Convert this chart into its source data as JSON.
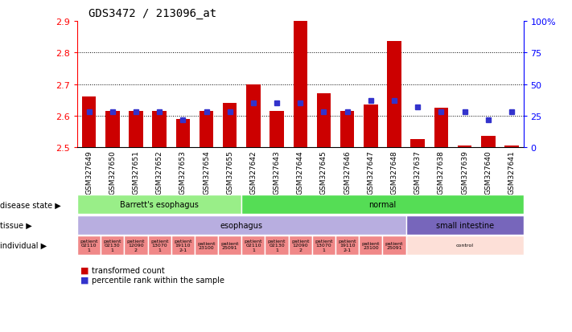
{
  "title": "GDS3472 / 213096_at",
  "samples": [
    "GSM327649",
    "GSM327650",
    "GSM327651",
    "GSM327652",
    "GSM327653",
    "GSM327654",
    "GSM327655",
    "GSM327642",
    "GSM327643",
    "GSM327644",
    "GSM327645",
    "GSM327646",
    "GSM327647",
    "GSM327648",
    "GSM327637",
    "GSM327638",
    "GSM327639",
    "GSM327640",
    "GSM327641"
  ],
  "red_values": [
    2.66,
    2.615,
    2.615,
    2.615,
    2.59,
    2.615,
    2.64,
    2.7,
    2.615,
    2.9,
    2.67,
    2.615,
    2.635,
    2.835,
    2.525,
    2.625,
    2.505,
    2.535,
    2.505
  ],
  "blue_values_pct": [
    28,
    28,
    28,
    28,
    22,
    28,
    28,
    35,
    35,
    35,
    28,
    28,
    37,
    37,
    32,
    28,
    28,
    22,
    28
  ],
  "ylim": [
    2.5,
    2.9
  ],
  "y_ticks": [
    2.5,
    2.6,
    2.7,
    2.8,
    2.9
  ],
  "right_ticks": [
    0,
    25,
    50,
    75,
    100
  ],
  "right_tick_labels": [
    "0",
    "25",
    "50",
    "75",
    "100%"
  ],
  "dotted_lines": [
    2.6,
    2.7,
    2.8
  ],
  "bar_color": "#cc0000",
  "blue_color": "#3333cc",
  "disease_state_groups": [
    {
      "label": "Barrett's esophagus",
      "start": 0,
      "end": 7,
      "color": "#99ee88"
    },
    {
      "label": "normal",
      "start": 7,
      "end": 19,
      "color": "#55dd55"
    }
  ],
  "tissue_groups": [
    {
      "label": "esophagus",
      "start": 0,
      "end": 14,
      "color": "#b8aee0"
    },
    {
      "label": "small intestine",
      "start": 14,
      "end": 19,
      "color": "#7766bb"
    }
  ],
  "individual_groups": [
    {
      "label": "patient\n02110\n1",
      "start": 0,
      "end": 1,
      "color": "#f08888"
    },
    {
      "label": "patient\n02130\n1",
      "start": 1,
      "end": 2,
      "color": "#f08888"
    },
    {
      "label": "patient\n12090\n2",
      "start": 2,
      "end": 3,
      "color": "#f08888"
    },
    {
      "label": "patient\n13070\n1",
      "start": 3,
      "end": 4,
      "color": "#f08888"
    },
    {
      "label": "patient\n19110\n2-1",
      "start": 4,
      "end": 5,
      "color": "#f08888"
    },
    {
      "label": "patient\n23100",
      "start": 5,
      "end": 6,
      "color": "#f08888"
    },
    {
      "label": "patient\n25091",
      "start": 6,
      "end": 7,
      "color": "#f08888"
    },
    {
      "label": "patient\n02110\n1",
      "start": 7,
      "end": 8,
      "color": "#f08888"
    },
    {
      "label": "patient\n02130\n1",
      "start": 8,
      "end": 9,
      "color": "#f08888"
    },
    {
      "label": "patient\n12090\n2",
      "start": 9,
      "end": 10,
      "color": "#f08888"
    },
    {
      "label": "patient\n13070\n1",
      "start": 10,
      "end": 11,
      "color": "#f08888"
    },
    {
      "label": "patient\n19110\n2-1",
      "start": 11,
      "end": 12,
      "color": "#f08888"
    },
    {
      "label": "patient\n23100",
      "start": 12,
      "end": 13,
      "color": "#f08888"
    },
    {
      "label": "patient\n25091",
      "start": 13,
      "end": 14,
      "color": "#f08888"
    },
    {
      "label": "control",
      "start": 14,
      "end": 19,
      "color": "#fde0d8"
    }
  ],
  "legend_items": [
    {
      "color": "#cc0000",
      "label": "transformed count"
    },
    {
      "color": "#3333cc",
      "label": "percentile rank within the sample"
    }
  ]
}
